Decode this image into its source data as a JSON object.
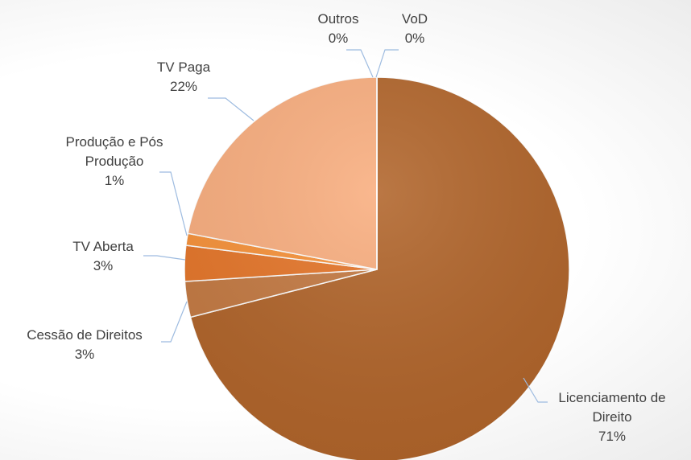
{
  "chart_data": {
    "type": "pie",
    "categories": [
      "Licenciamento de Direito",
      "Cessão de Direitos",
      "TV Aberta",
      "Produção e Pós Produção",
      "TV Paga",
      "Outros",
      "VoD"
    ],
    "values": [
      71,
      3,
      3,
      1,
      22,
      0,
      0
    ],
    "value_labels": [
      "71%",
      "3%",
      "3%",
      "1%",
      "22%",
      "0%",
      "0%"
    ],
    "colors": [
      "#b1652b",
      "#c47a43",
      "#e5762a",
      "#f7923a",
      "#f9ae7f",
      "#f6c8a8",
      "#fbdcc8"
    ]
  }
}
